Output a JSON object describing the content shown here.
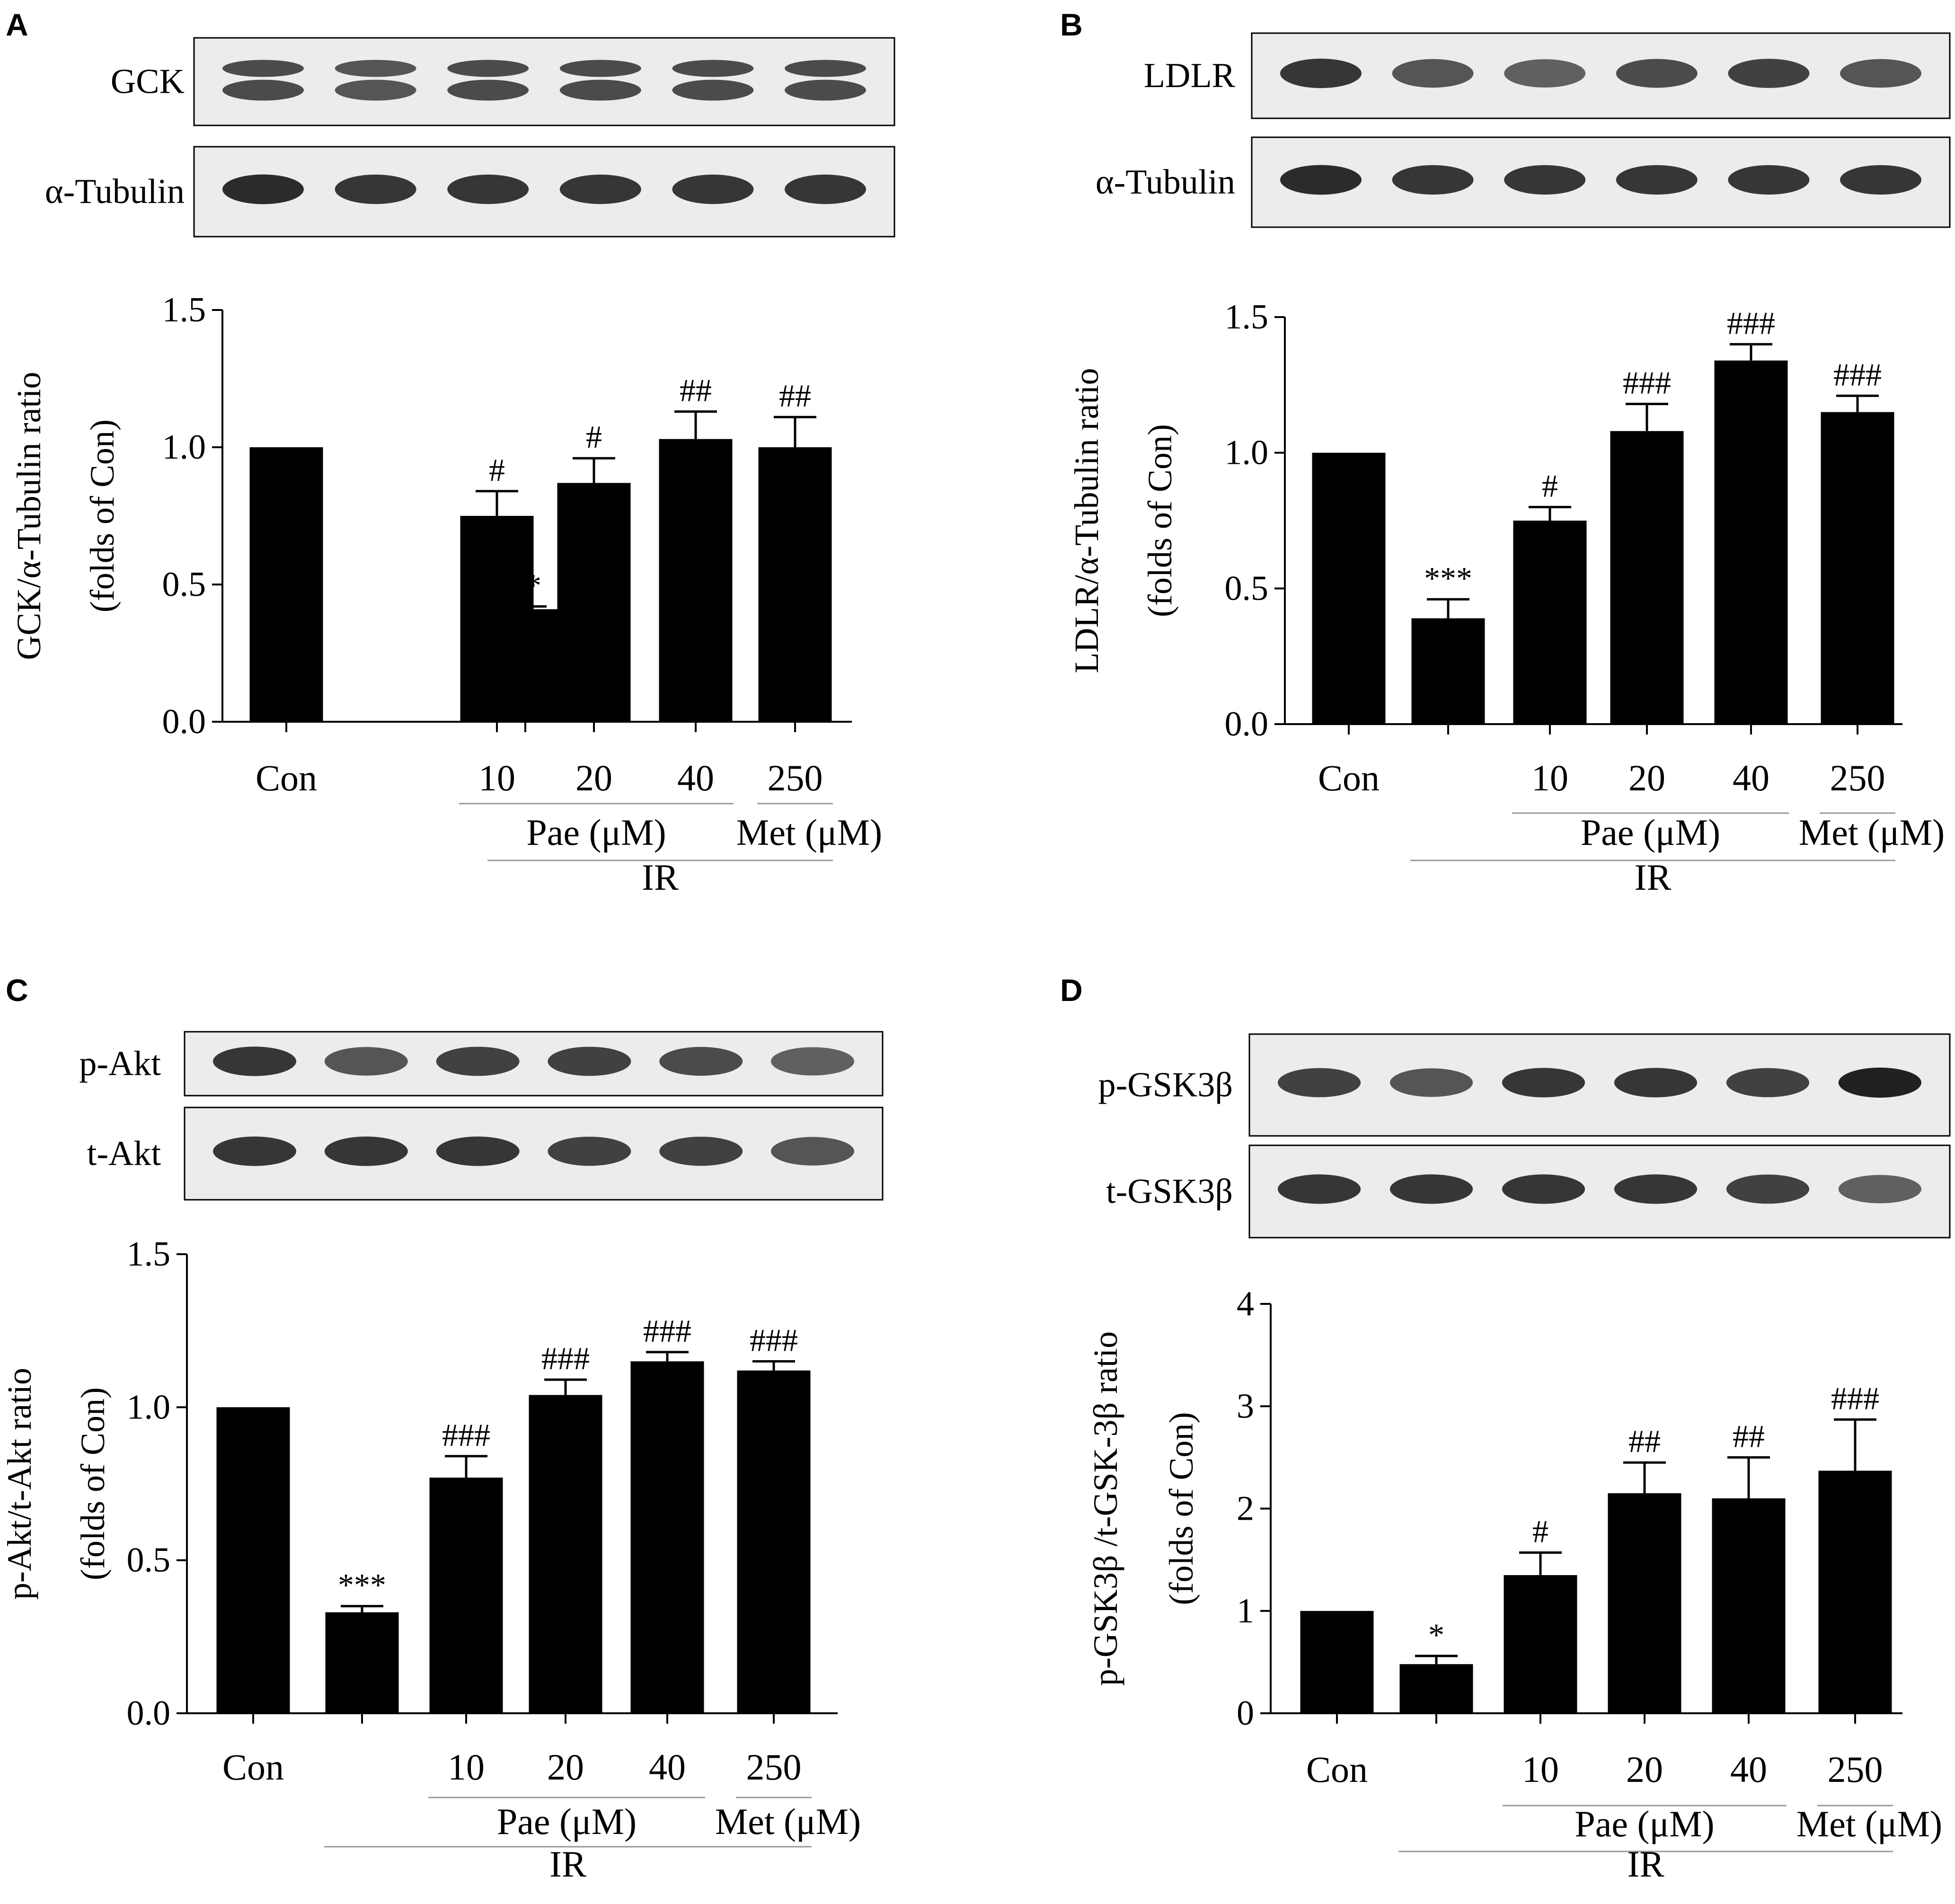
{
  "colors": {
    "bar": "#000000",
    "blot_background": "#ececec",
    "band": "#161616",
    "group_line": "#999999"
  },
  "panels": [
    {
      "letter": "A",
      "blots": [
        {
          "label": "GCK",
          "band_intensity": [
            0.75,
            0.7,
            0.75,
            0.75,
            0.75,
            0.75
          ],
          "double_band": true
        },
        {
          "label": "α-Tubulin",
          "band_intensity": [
            0.9,
            0.85,
            0.85,
            0.85,
            0.85,
            0.85
          ],
          "double_band": false
        }
      ],
      "chart_data": {
        "type": "bar",
        "categories": [
          "Con",
          "",
          "10",
          "20",
          "40",
          "250"
        ],
        "values": [
          1.0,
          0.41,
          0.75,
          0.87,
          1.03,
          1.0
        ],
        "errors": [
          0.0,
          0.01,
          0.09,
          0.09,
          0.1,
          0.11
        ],
        "significance": [
          "",
          "**",
          "#",
          "#",
          "##",
          "##"
        ],
        "ylim": [
          0,
          1.5
        ],
        "yticks": [
          "0.0",
          "0.5",
          "1.0",
          "1.5"
        ],
        "ylabel_lines": [
          "GCK/α-Tubulin ratio",
          "(folds of Con)"
        ],
        "groups": [
          {
            "label": "Pae (μM)",
            "span": [
              2,
              4
            ]
          },
          {
            "label": "Met (μM)",
            "span": [
              5,
              5
            ]
          },
          {
            "label": "IR",
            "span": [
              1,
              5
            ]
          }
        ]
      }
    },
    {
      "letter": "B",
      "blots": [
        {
          "label": "LDLR",
          "band_intensity": [
            0.85,
            0.7,
            0.65,
            0.75,
            0.8,
            0.7
          ],
          "double_band": false
        },
        {
          "label": "α-Tubulin",
          "band_intensity": [
            0.9,
            0.85,
            0.85,
            0.85,
            0.85,
            0.85
          ],
          "double_band": false
        }
      ],
      "chart_data": {
        "type": "bar",
        "categories": [
          "Con",
          "",
          "10",
          "20",
          "40",
          "250"
        ],
        "values": [
          1.0,
          0.39,
          0.75,
          1.08,
          1.34,
          1.15
        ],
        "errors": [
          0.0,
          0.07,
          0.05,
          0.1,
          0.06,
          0.06
        ],
        "significance": [
          "",
          "***",
          "#",
          "###",
          "###",
          "###"
        ],
        "ylim": [
          0,
          1.5
        ],
        "yticks": [
          "0.0",
          "0.5",
          "1.0",
          "1.5"
        ],
        "ylabel_lines": [
          "LDLR/α-Tubulin ratio",
          "(folds of Con)"
        ],
        "groups": [
          {
            "label": "Pae (μM)",
            "span": [
              2,
              4
            ]
          },
          {
            "label": "Met (μM)",
            "span": [
              5,
              5
            ]
          },
          {
            "label": "IR",
            "span": [
              1,
              5
            ]
          }
        ]
      }
    },
    {
      "letter": "C",
      "blots": [
        {
          "label": "p-Akt",
          "band_intensity": [
            0.85,
            0.7,
            0.8,
            0.8,
            0.75,
            0.65
          ],
          "double_band": false
        },
        {
          "label": "t-Akt",
          "band_intensity": [
            0.85,
            0.85,
            0.85,
            0.8,
            0.8,
            0.7
          ],
          "double_band": false
        }
      ],
      "chart_data": {
        "type": "bar",
        "categories": [
          "Con",
          "",
          "10",
          "20",
          "40",
          "250"
        ],
        "values": [
          1.0,
          0.33,
          0.77,
          1.04,
          1.15,
          1.12
        ],
        "errors": [
          0.0,
          0.02,
          0.07,
          0.05,
          0.03,
          0.03
        ],
        "significance": [
          "",
          "***",
          "###",
          "###",
          "###",
          "###"
        ],
        "ylim": [
          0,
          1.5
        ],
        "yticks": [
          "0.0",
          "0.5",
          "1.0",
          "1.5"
        ],
        "ylabel_lines": [
          "p-Akt/t-Akt ratio",
          "(folds of Con)"
        ],
        "groups": [
          {
            "label": "Pae (μM)",
            "span": [
              2,
              4
            ]
          },
          {
            "label": "Met (μM)",
            "span": [
              5,
              5
            ]
          },
          {
            "label": "IR",
            "span": [
              1,
              5
            ]
          }
        ]
      }
    },
    {
      "letter": "D",
      "blots": [
        {
          "label": "p-GSK3β",
          "band_intensity": [
            0.8,
            0.7,
            0.85,
            0.85,
            0.8,
            0.95
          ],
          "double_band": false
        },
        {
          "label": "t-GSK3β",
          "band_intensity": [
            0.85,
            0.85,
            0.85,
            0.85,
            0.8,
            0.65
          ],
          "double_band": false
        }
      ],
      "chart_data": {
        "type": "bar",
        "categories": [
          "Con",
          "",
          "10",
          "20",
          "40",
          "250"
        ],
        "values": [
          1.0,
          0.48,
          1.35,
          2.15,
          2.1,
          2.37
        ],
        "errors": [
          0.0,
          0.08,
          0.22,
          0.3,
          0.4,
          0.5
        ],
        "significance": [
          "",
          "*",
          "#",
          "##",
          "##",
          "###"
        ],
        "ylim": [
          0,
          4
        ],
        "yticks": [
          "0",
          "1",
          "2",
          "3",
          "4"
        ],
        "ylabel_lines": [
          "p-GSK3β /t-GSK-3β  ratio",
          "(folds of Con)"
        ],
        "groups": [
          {
            "label": "Pae (μM)",
            "span": [
              2,
              4
            ]
          },
          {
            "label": "Met (μM)",
            "span": [
              5,
              5
            ]
          },
          {
            "label": "IR",
            "span": [
              1,
              5
            ]
          }
        ]
      }
    }
  ]
}
